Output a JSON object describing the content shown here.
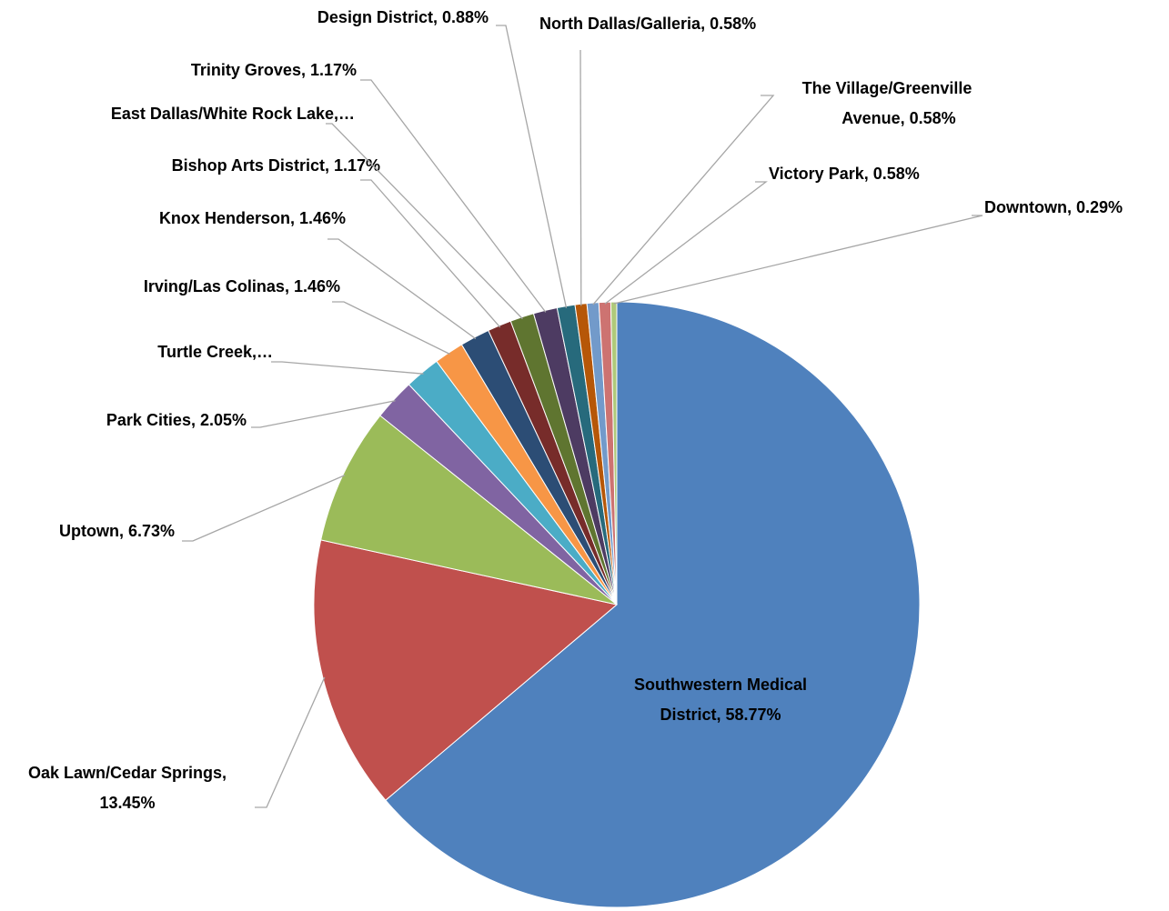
{
  "chart_data": {
    "type": "pie",
    "values": [
      58.77,
      13.45,
      6.73,
      2.05,
      1.75,
      1.46,
      1.46,
      1.17,
      1.17,
      1.17,
      0.88,
      0.58,
      0.58,
      0.58,
      0.29
    ],
    "value_labels": [
      [
        "Southwestern Medical",
        "District, 58.77%"
      ],
      [
        "Oak Lawn/Cedar Springs,",
        "13.45%"
      ],
      [
        "Uptown, 6.73%"
      ],
      [
        "Park Cities, 2.05%"
      ],
      [
        "Turtle Creek,…"
      ],
      [
        "Irving/Las Colinas, 1.46%"
      ],
      [
        "Knox Henderson, 1.46%"
      ],
      [
        "Bishop Arts District, 1.17%"
      ],
      [
        "East Dallas/White Rock Lake,…"
      ],
      [
        "Trinity Groves, 1.17%"
      ],
      [
        "Design District, 0.88%"
      ],
      [
        "North Dallas/Galleria, 0.58%"
      ],
      [
        "The Village/Greenville",
        "Avenue, 0.58%"
      ],
      [
        "Victory Park, 0.58%"
      ],
      [
        "Downtown, 0.29%"
      ]
    ],
    "colors": [
      "#4f81bd",
      "#c0504d",
      "#9bbb59",
      "#8064a2",
      "#4bacc6",
      "#f79646",
      "#2c4d75",
      "#772c2a",
      "#5f7530",
      "#4d3b62",
      "#276a7c",
      "#b65708",
      "#729aca",
      "#cd7371",
      "#afc97a"
    ]
  }
}
